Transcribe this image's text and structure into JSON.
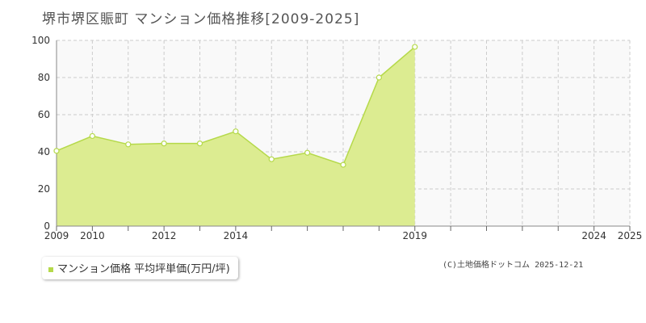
{
  "page": {
    "title": "堺市堺区賑町 マンション価格推移[2009-2025]",
    "copyright": "(C)土地価格ドットコム 2025-12-21"
  },
  "colors": {
    "fill": "#dcec91",
    "line": "#b5d94a",
    "plot_bg": "#f9f9f9",
    "grid": "#cccccc",
    "marker": "#b5d94a"
  },
  "chart_data": {
    "type": "area",
    "title": "堺市堺区賑町 マンション価格推移[2009-2025]",
    "xlabel": "",
    "ylabel": "",
    "xlim": [
      2009,
      2025
    ],
    "ylim": [
      0,
      100
    ],
    "grid": true,
    "legend_position": "bottom-left",
    "x_ticks": [
      2009,
      2010,
      2011,
      2012,
      2013,
      2014,
      2015,
      2016,
      2017,
      2018,
      2019,
      2020,
      2021,
      2022,
      2023,
      2024,
      2025
    ],
    "x_tick_labels": [
      "2009",
      "2010",
      "",
      "2012",
      "",
      "2014",
      "",
      "",
      "",
      "",
      "2019",
      "",
      "",
      "",
      "",
      "2024",
      "2025"
    ],
    "y_ticks": [
      0,
      20,
      40,
      60,
      80,
      100
    ],
    "y_tick_labels": [
      "0",
      "20",
      "40",
      "60",
      "80",
      "100"
    ],
    "series": [
      {
        "name": "マンション価格 平均坪単価(万円/坪)",
        "x": [
          2009,
          2010,
          2011,
          2012,
          2013,
          2014,
          2015,
          2016,
          2017,
          2018,
          2019
        ],
        "y": [
          40.5,
          48.5,
          44,
          44.5,
          44.5,
          51,
          36,
          39.5,
          33,
          80,
          96.5
        ]
      }
    ]
  }
}
